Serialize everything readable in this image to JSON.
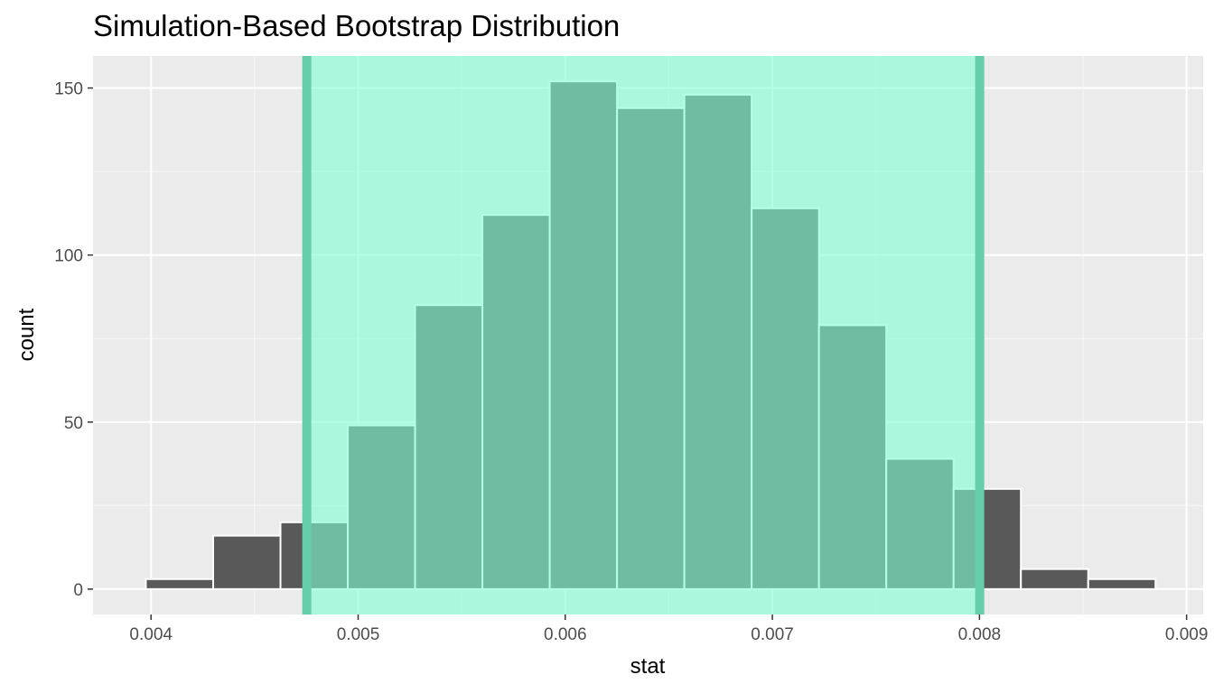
{
  "chart_data": {
    "type": "bar",
    "title": "Simulation-Based Bootstrap Distribution",
    "xlabel": "stat",
    "ylabel": "count",
    "xlim": [
      0.00372,
      0.00908
    ],
    "ylim": [
      -7.6,
      159.6
    ],
    "xticks": [
      "0.004",
      "0.005",
      "0.006",
      "0.007",
      "0.008",
      "0.009"
    ],
    "xtick_values": [
      0.004,
      0.005,
      0.006,
      0.007,
      0.008,
      0.009
    ],
    "yticks": [
      "0",
      "50",
      "100",
      "150"
    ],
    "ytick_values": [
      0,
      50,
      100,
      150
    ],
    "grid": true,
    "bars": [
      {
        "x0": 0.003975,
        "x1": 0.0043,
        "count": 3
      },
      {
        "x0": 0.0043,
        "x1": 0.004625,
        "count": 16
      },
      {
        "x0": 0.004625,
        "x1": 0.00495,
        "count": 20
      },
      {
        "x0": 0.00495,
        "x1": 0.005275,
        "count": 49
      },
      {
        "x0": 0.005275,
        "x1": 0.0056,
        "count": 85
      },
      {
        "x0": 0.0056,
        "x1": 0.005925,
        "count": 112
      },
      {
        "x0": 0.005925,
        "x1": 0.00625,
        "count": 152
      },
      {
        "x0": 0.00625,
        "x1": 0.006575,
        "count": 144
      },
      {
        "x0": 0.006575,
        "x1": 0.0069,
        "count": 148
      },
      {
        "x0": 0.0069,
        "x1": 0.007225,
        "count": 114
      },
      {
        "x0": 0.007225,
        "x1": 0.00755,
        "count": 79
      },
      {
        "x0": 0.00755,
        "x1": 0.007875,
        "count": 39
      },
      {
        "x0": 0.007875,
        "x1": 0.0082,
        "count": 30
      },
      {
        "x0": 0.0082,
        "x1": 0.008525,
        "count": 6
      },
      {
        "x0": 0.008525,
        "x1": 0.00885,
        "count": 3
      }
    ],
    "confidence_interval": {
      "lower": 0.004752,
      "upper": 0.008001
    },
    "colors": {
      "panel": "#ebebeb",
      "grid": "#ffffff",
      "bar_fill": "#595959",
      "bar_outline": "#ffffff",
      "ci_fill": "#7fffd4",
      "ci_line": "#66cdaa",
      "tick_text": "#4d4d4d",
      "tick_mark": "#333333"
    }
  }
}
